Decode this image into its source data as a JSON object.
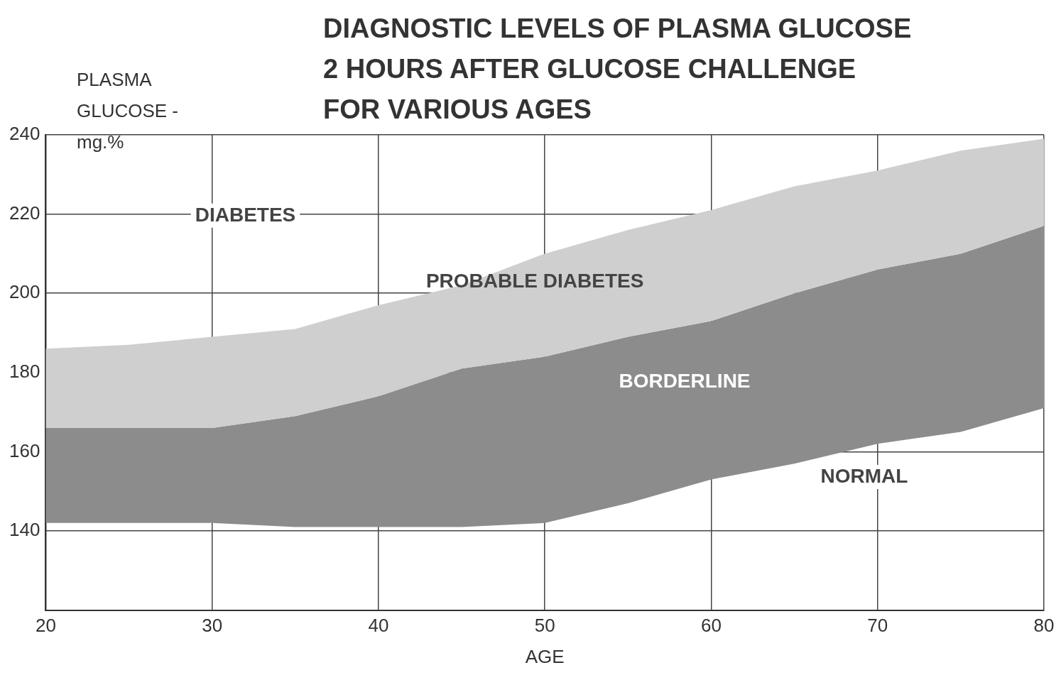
{
  "chart_data": {
    "type": "area",
    "title": "DIAGNOSTIC LEVELS OF PLASMA GLUCOSE 2 HOURS AFTER GLUCOSE CHALLENGE FOR VARIOUS AGES",
    "xlabel": "AGE",
    "ylabel": "PLASMA GLUCOSE - mg.%",
    "x": [
      20,
      25,
      30,
      35,
      40,
      45,
      50,
      55,
      60,
      65,
      70,
      75,
      80
    ],
    "series": [
      {
        "color": "#8c8c8c",
        "values": [
          null,
          null,
          null,
          null,
          null,
          null,
          null,
          null,
          null,
          null,
          null,
          null,
          null
        ],
        "lower": [
          142,
          142,
          142,
          141,
          141,
          141,
          142,
          147,
          153,
          157,
          162,
          165,
          171
        ],
        "upper": [
          166,
          166,
          166,
          169,
          174,
          181,
          184,
          189,
          193,
          200,
          206,
          210,
          217
        ]
      },
      {
        "color": "#cfcfcf",
        "values": [
          null,
          null,
          null,
          null,
          null,
          null,
          null,
          null,
          null,
          null,
          null,
          null,
          null
        ],
        "lower": [
          166,
          166,
          166,
          169,
          174,
          181,
          184,
          189,
          193,
          200,
          206,
          210,
          217
        ],
        "upper": [
          186,
          187,
          189,
          191,
          197,
          202,
          210,
          216,
          221,
          227,
          231,
          236,
          239
        ]
      }
    ],
    "annotations": [
      "DIABETES",
      "PROBABLE DIABETES",
      "BORDERLINE",
      "NORMAL"
    ],
    "xlim": [
      20,
      80
    ],
    "ylim": [
      120,
      240
    ],
    "xticks": [
      20,
      30,
      40,
      50,
      60,
      70,
      80
    ],
    "yticks": [
      140,
      160,
      180,
      200,
      220,
      240
    ],
    "grid": true
  }
}
